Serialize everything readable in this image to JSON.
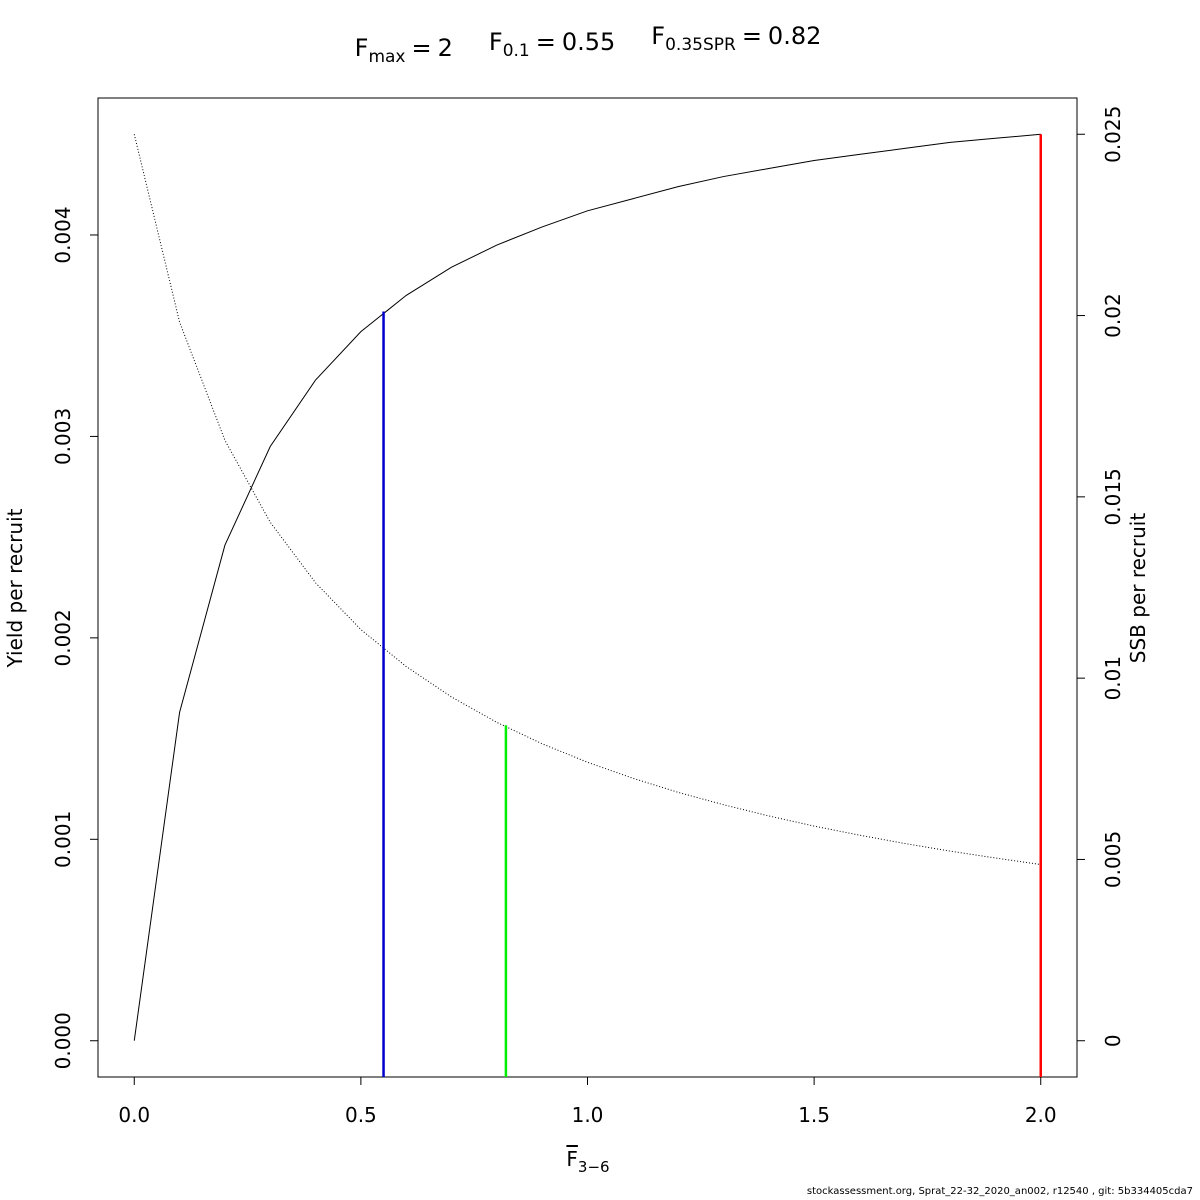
{
  "chart_data": {
    "type": "line",
    "title_parts": [
      {
        "symbol": "F",
        "subscript": "max",
        "operator": "=",
        "value": 2
      },
      {
        "symbol": "F",
        "subscript": "0.1",
        "operator": "=",
        "value": 0.55
      },
      {
        "symbol": "F",
        "subscript": "0.35SPR",
        "operator": "=",
        "value": 0.82
      }
    ],
    "x_label": {
      "symbol": "F",
      "subscript": "3−6"
    },
    "y_label": "Yield per recruit",
    "y2_label": "SSB per recruit",
    "footer": "stockassessment.org, Sprat_22-32_2020_an002, r12540 , git: 5b334405cda7",
    "x": [
      0,
      0.1,
      0.2,
      0.3,
      0.4,
      0.5,
      0.6,
      0.7,
      0.8,
      0.9,
      1.0,
      1.1,
      1.2,
      1.3,
      1.4,
      1.5,
      1.6,
      1.7,
      1.8,
      1.9,
      2.0
    ],
    "series": [
      {
        "name": "Yield per recruit",
        "color": "#000000",
        "style": "solid",
        "axis": "y",
        "values": [
          0,
          0.00163,
          0.00246,
          0.00295,
          0.00328,
          0.00352,
          0.0037,
          0.00384,
          0.00395,
          0.00404,
          0.00412,
          0.00418,
          0.00424,
          0.00429,
          0.00433,
          0.00437,
          0.0044,
          0.00443,
          0.00446,
          0.00448,
          0.0045
        ]
      },
      {
        "name": "SSB per recruit",
        "color": "#000000",
        "style": "dotted",
        "axis": "y2",
        "values": [
          0.025,
          0.01982,
          0.01656,
          0.0143,
          0.01263,
          0.01134,
          0.01032,
          0.00948,
          0.00878,
          0.00819,
          0.00768,
          0.00724,
          0.00685,
          0.00651,
          0.0062,
          0.00592,
          0.00567,
          0.00544,
          0.00523,
          0.00504,
          0.00486
        ]
      }
    ],
    "reference_lines": [
      {
        "x": 0.55,
        "y": 0.00362,
        "axis": "y",
        "color": "#0000cc"
      },
      {
        "x": 0.82,
        "y": 0.0087,
        "axis": "y2",
        "color": "#00ee00"
      },
      {
        "x": 2,
        "y": 0.0045,
        "axis": "y",
        "color": "#ff0000"
      }
    ],
    "xlim": [
      -0.08,
      2.08
    ],
    "xticks": [
      {
        "value": 0,
        "label": "0.0"
      },
      {
        "value": 0.5,
        "label": "0.5"
      },
      {
        "value": 1,
        "label": "1.0"
      },
      {
        "value": 1.5,
        "label": "1.5"
      },
      {
        "value": 2,
        "label": "2.0"
      }
    ],
    "ylim": [
      -0.00018,
      0.00468
    ],
    "yticks": [
      {
        "value": 0,
        "label": "0.000"
      },
      {
        "value": 0.001,
        "label": "0.001"
      },
      {
        "value": 0.002,
        "label": "0.002"
      },
      {
        "value": 0.003,
        "label": "0.003"
      },
      {
        "value": 0.004,
        "label": "0.004"
      }
    ],
    "y2lim": [
      -0.001,
      0.026
    ],
    "y2ticks": [
      0,
      0.005,
      0.01,
      0.015,
      0.02,
      0.025
    ]
  }
}
